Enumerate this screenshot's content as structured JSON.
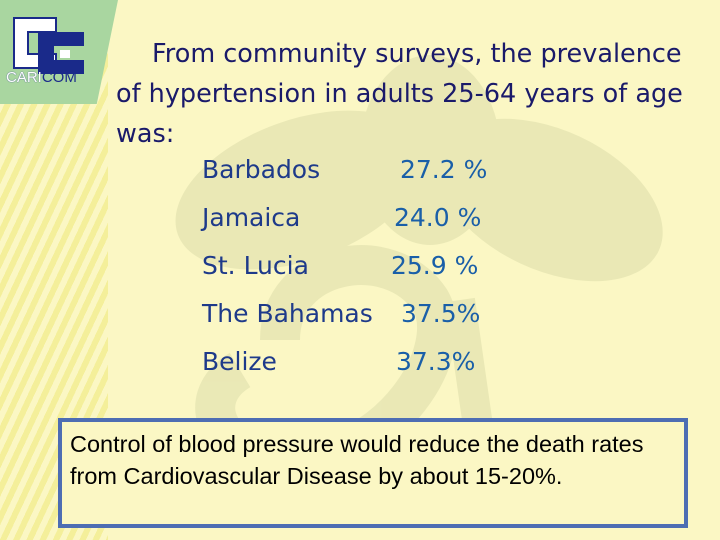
{
  "logo": {
    "text_part1": "CARI",
    "text_part2": "COM"
  },
  "intro_text": "From community surveys, the prevalence of hypertension in adults 25-64 years of age was:",
  "prevalence": [
    {
      "country": "Barbados",
      "value": "27.2 %"
    },
    {
      "country": "Jamaica",
      "value": "24.0 %"
    },
    {
      "country": "St. Lucia",
      "value": "25.9 %"
    },
    {
      "country": "The Bahamas",
      "value": "37.5%"
    },
    {
      "country": "Belize",
      "value": "37.3%"
    }
  ],
  "note": "Control of blood pressure would reduce the death rates from Cardiovascular Disease by about 15-20%.",
  "colors": {
    "background": "#fbf7c4",
    "text": "#1a1a6a",
    "value": "#1a5fa8",
    "note_border": "#4d6db3",
    "logo": "#1a2a8a"
  }
}
